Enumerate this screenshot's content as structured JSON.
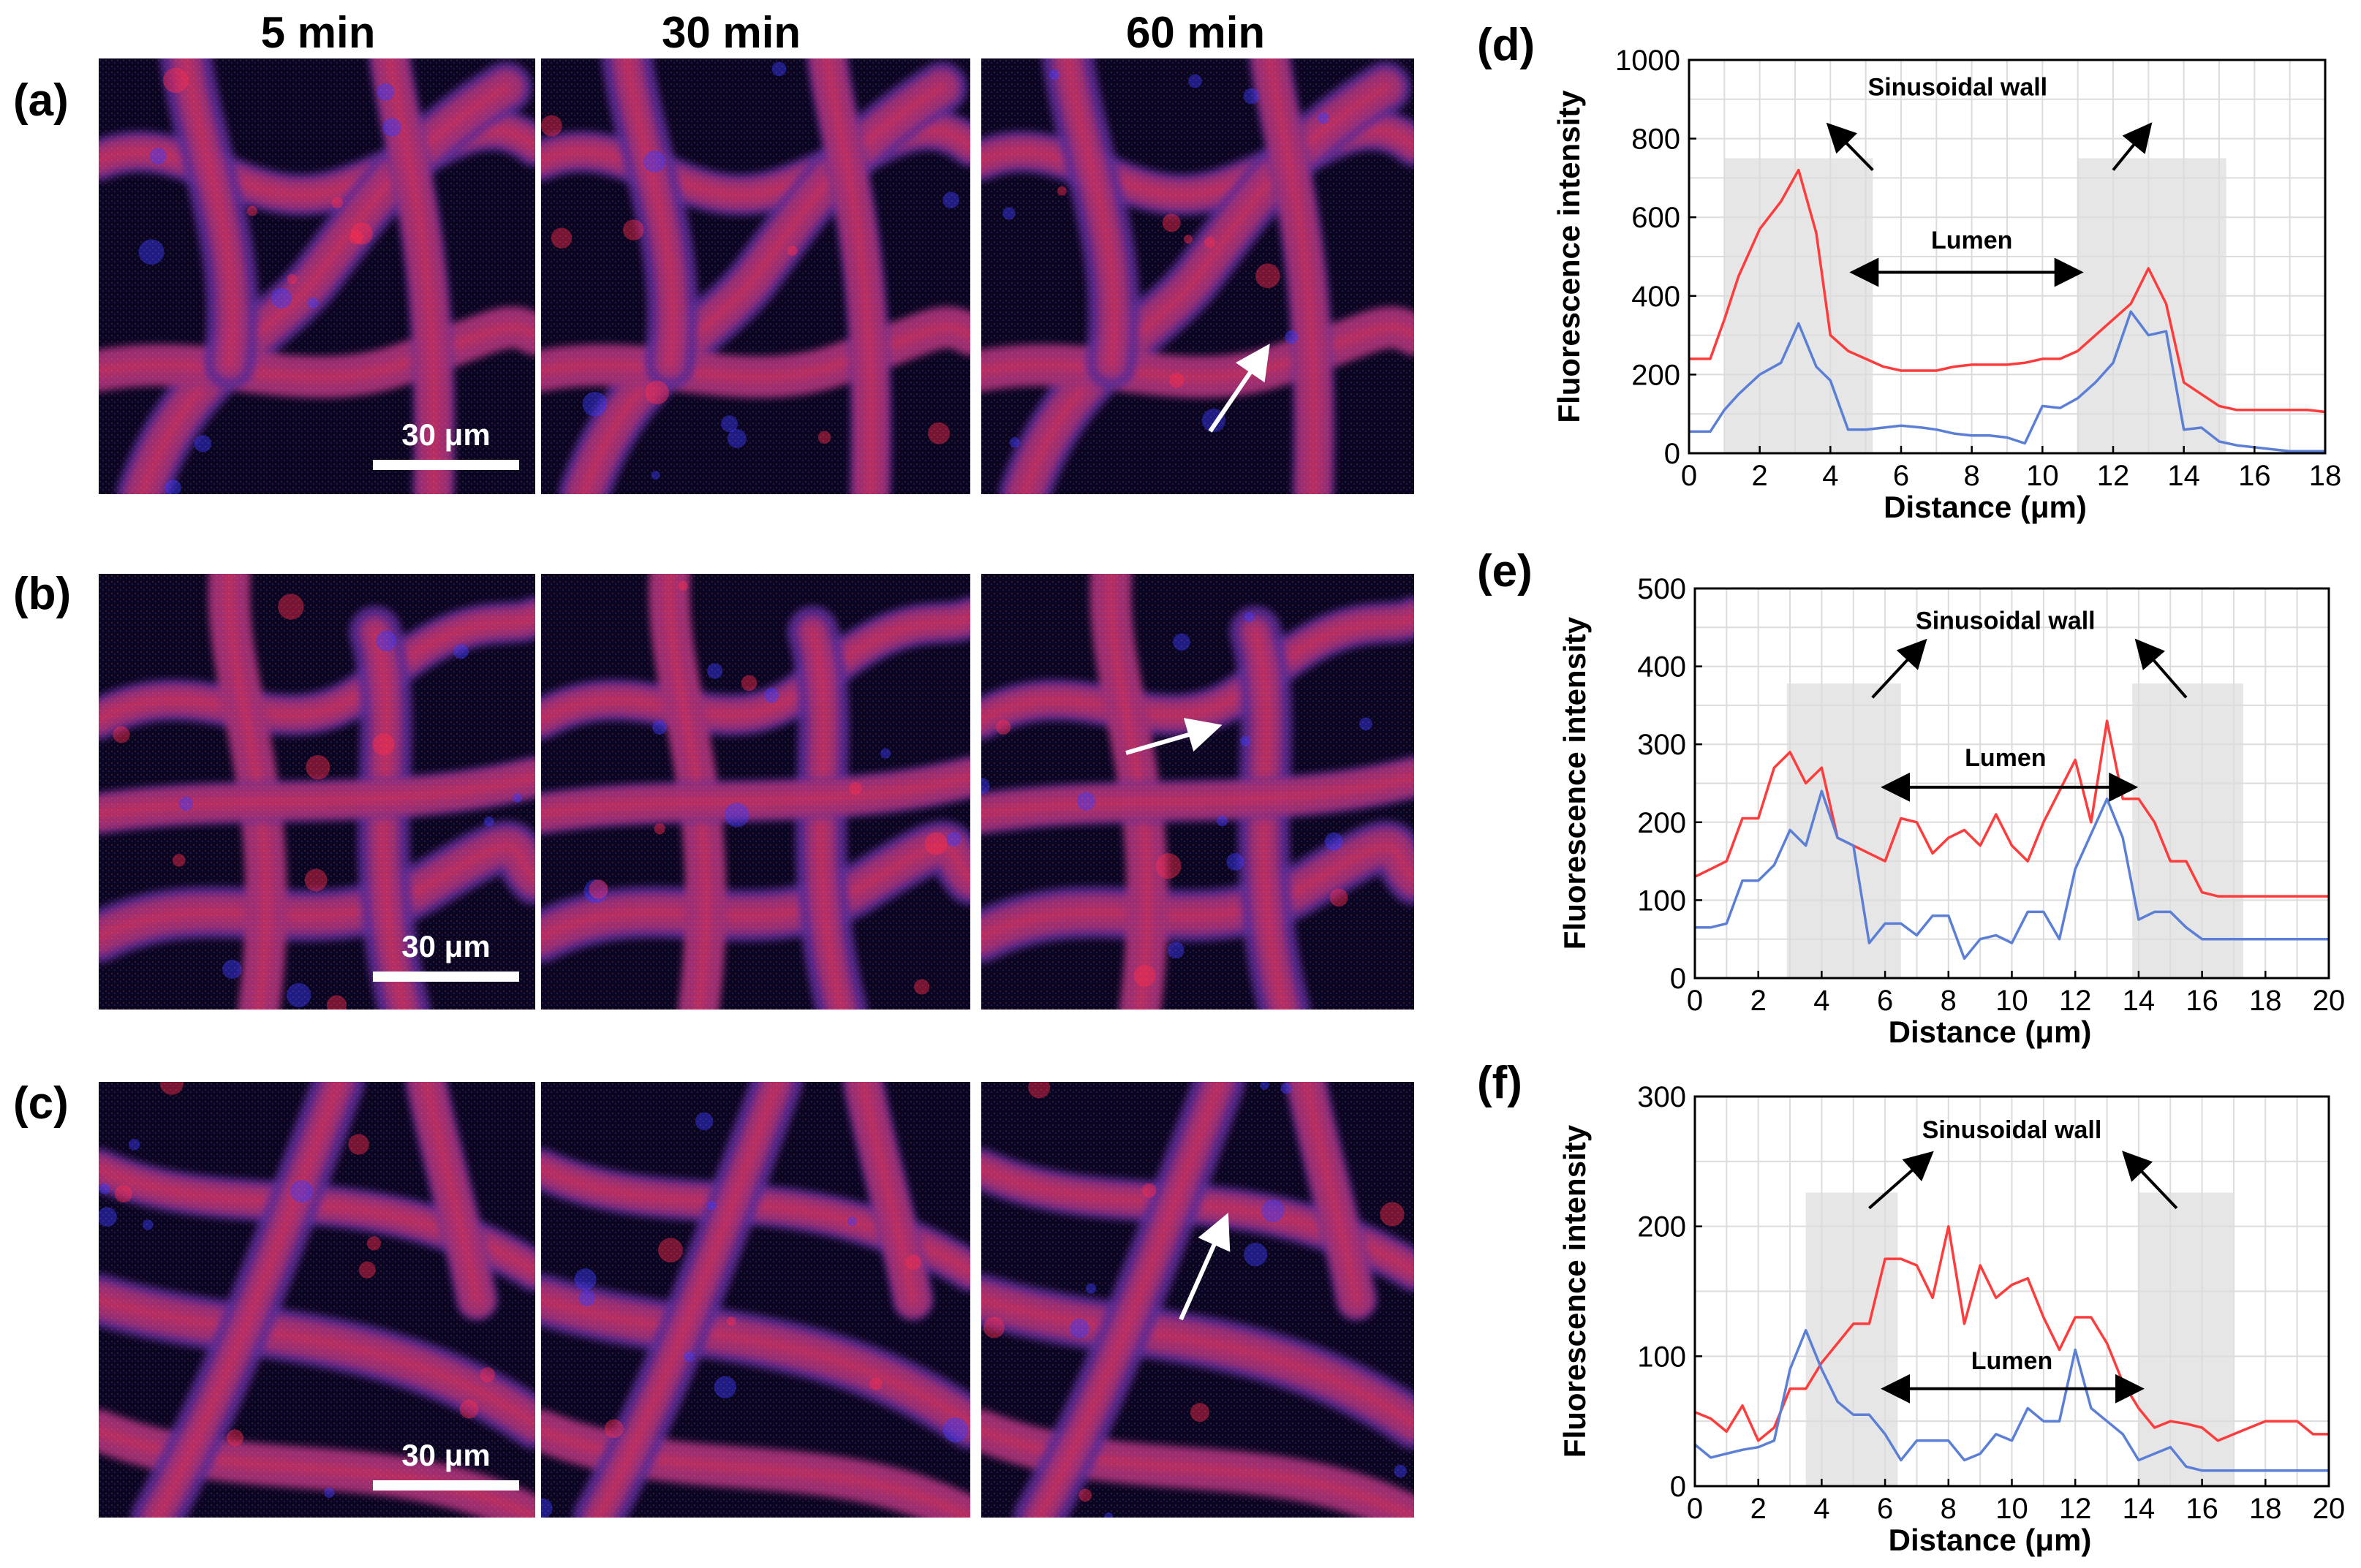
{
  "figure": {
    "column_titles": [
      "5 min",
      "30 min",
      "60 min"
    ],
    "row_labels": [
      "(a)",
      "(b)",
      "(c)"
    ],
    "scale_bar_text": "30 μm",
    "colors": {
      "red_channel": "#ff3b3b",
      "blue_channel": "#5b7fd6",
      "shade": "#e6e6e6",
      "grid": "#dcdcdc"
    }
  },
  "chart_data": [
    {
      "label": "(d)",
      "type": "line",
      "xlabel": "Distance (μm)",
      "ylabel": "Fluorescence intensity",
      "xlim": [
        0,
        18
      ],
      "ylim": [
        0,
        1000
      ],
      "xticks": [
        0,
        2,
        4,
        6,
        8,
        10,
        12,
        14,
        16,
        18
      ],
      "yticks": [
        0,
        200,
        400,
        600,
        800,
        1000
      ],
      "shaded_regions": [
        [
          1,
          5.2
        ],
        [
          11,
          15.2
        ]
      ],
      "shade_top": 750,
      "annotations": {
        "wall": "Sinusoidal wall",
        "lumen": "Lumen"
      },
      "wall_text_pos": [
        7.6,
        910
      ],
      "wall_arrows": [
        [
          [
            5.2,
            720
          ],
          [
            4,
            830
          ]
        ],
        [
          [
            12,
            720
          ],
          [
            13,
            830
          ]
        ]
      ],
      "lumen_text_pos": [
        8,
        520
      ],
      "lumen_arrow": [
        5.2,
        11,
        460
      ],
      "series": [
        {
          "name": "red",
          "color": "#ff3b3b",
          "x": [
            0,
            0.6,
            1,
            1.4,
            2,
            2.6,
            3.1,
            3.6,
            4,
            4.5,
            5,
            5.5,
            6,
            6.6,
            7,
            7.5,
            8,
            8.5,
            9,
            9.5,
            10,
            10.5,
            11,
            11.5,
            12,
            12.5,
            13,
            13.5,
            14,
            14.5,
            15,
            15.5,
            16,
            16.5,
            17,
            17.5,
            18
          ],
          "values": [
            240,
            240,
            340,
            450,
            570,
            640,
            720,
            560,
            300,
            260,
            240,
            220,
            210,
            210,
            210,
            220,
            225,
            225,
            225,
            230,
            240,
            240,
            260,
            300,
            340,
            380,
            470,
            380,
            180,
            150,
            120,
            110,
            110,
            110,
            110,
            110,
            105
          ]
        },
        {
          "name": "blue",
          "color": "#5b7fd6",
          "x": [
            0,
            0.6,
            1,
            1.4,
            2,
            2.6,
            3.1,
            3.6,
            4,
            4.5,
            5,
            5.5,
            6,
            6.6,
            7,
            7.5,
            8,
            8.5,
            9,
            9.5,
            10,
            10.5,
            11,
            11.5,
            12,
            12.5,
            13,
            13.5,
            14,
            14.5,
            15,
            15.5,
            16,
            16.5,
            17,
            17.5,
            18
          ],
          "values": [
            55,
            55,
            110,
            150,
            200,
            230,
            330,
            220,
            185,
            60,
            60,
            65,
            70,
            65,
            60,
            50,
            45,
            45,
            40,
            25,
            120,
            115,
            140,
            180,
            230,
            360,
            300,
            310,
            60,
            65,
            30,
            20,
            15,
            10,
            5,
            5,
            5
          ]
        }
      ]
    },
    {
      "label": "(e)",
      "type": "line",
      "xlabel": "Distance (μm)",
      "ylabel": "Fluorescence intensity",
      "xlim": [
        0,
        20
      ],
      "ylim": [
        0,
        500
      ],
      "xticks": [
        0,
        2,
        4,
        6,
        8,
        10,
        12,
        14,
        16,
        18,
        20
      ],
      "yticks": [
        0,
        100,
        200,
        300,
        400,
        500
      ],
      "shaded_regions": [
        [
          2.9,
          6.5
        ],
        [
          13.8,
          17.3
        ]
      ],
      "shade_top": 378,
      "annotations": {
        "wall": "Sinusoidal wall",
        "lumen": "Lumen"
      },
      "wall_text_pos": [
        9.8,
        448
      ],
      "wall_arrows": [
        [
          [
            5.6,
            360
          ],
          [
            7.2,
            430
          ]
        ],
        [
          [
            15.5,
            360
          ],
          [
            14,
            430
          ]
        ]
      ],
      "lumen_text_pos": [
        9.8,
        272
      ],
      "lumen_arrow": [
        6.6,
        13.8,
        245
      ],
      "series": [
        {
          "name": "red",
          "color": "#ff3b3b",
          "x": [
            0,
            0.5,
            1,
            1.5,
            2,
            2.5,
            3,
            3.5,
            4,
            4.5,
            5,
            5.5,
            6,
            6.5,
            7,
            7.5,
            8,
            8.5,
            9,
            9.5,
            10,
            10.5,
            11,
            11.5,
            12,
            12.5,
            13,
            13.5,
            14,
            14.5,
            15,
            15.5,
            16,
            16.5,
            17,
            17.5,
            18,
            18.5,
            19,
            19.5,
            20
          ],
          "values": [
            130,
            140,
            150,
            205,
            205,
            270,
            290,
            250,
            270,
            180,
            170,
            160,
            150,
            205,
            200,
            160,
            180,
            190,
            170,
            210,
            170,
            150,
            200,
            240,
            280,
            200,
            330,
            230,
            230,
            200,
            150,
            150,
            110,
            105,
            105,
            105,
            105,
            105,
            105,
            105,
            105
          ]
        },
        {
          "name": "blue",
          "color": "#5b7fd6",
          "x": [
            0,
            0.5,
            1,
            1.5,
            2,
            2.5,
            3,
            3.5,
            4,
            4.5,
            5,
            5.5,
            6,
            6.5,
            7,
            7.5,
            8,
            8.5,
            9,
            9.5,
            10,
            10.5,
            11,
            11.5,
            12,
            12.5,
            13,
            13.5,
            14,
            14.5,
            15,
            15.5,
            16,
            16.5,
            17,
            17.5,
            18,
            18.5,
            19,
            19.5,
            20
          ],
          "values": [
            65,
            65,
            70,
            125,
            125,
            145,
            190,
            170,
            240,
            180,
            170,
            45,
            70,
            70,
            55,
            80,
            80,
            25,
            50,
            55,
            45,
            85,
            85,
            50,
            140,
            185,
            230,
            180,
            75,
            85,
            85,
            65,
            50,
            50,
            50,
            50,
            50,
            50,
            50,
            50,
            50
          ]
        }
      ]
    },
    {
      "label": "(f)",
      "type": "line",
      "xlabel": "Distance (μm)",
      "ylabel": "Fluorescence intensity",
      "xlim": [
        0,
        20
      ],
      "ylim": [
        0,
        300
      ],
      "xticks": [
        0,
        2,
        4,
        6,
        8,
        10,
        12,
        14,
        16,
        18,
        20
      ],
      "yticks": [
        0,
        100,
        200,
        300
      ],
      "shaded_regions": [
        [
          3.5,
          6.4
        ],
        [
          14,
          17
        ]
      ],
      "shade_top": 226,
      "annotations": {
        "wall": "Sinusoidal wall",
        "lumen": "Lumen"
      },
      "wall_text_pos": [
        10,
        268
      ],
      "wall_arrows": [
        [
          [
            5.5,
            214
          ],
          [
            7.4,
            255
          ]
        ],
        [
          [
            15.2,
            214
          ],
          [
            13.6,
            255
          ]
        ]
      ],
      "lumen_text_pos": [
        10,
        90
      ],
      "lumen_arrow": [
        6.6,
        14,
        75
      ],
      "series": [
        {
          "name": "red",
          "color": "#ff3b3b",
          "x": [
            0,
            0.5,
            1,
            1.5,
            2,
            2.5,
            3,
            3.5,
            4,
            4.5,
            5,
            5.5,
            6,
            6.5,
            7,
            7.5,
            8,
            8.5,
            9,
            9.5,
            10,
            10.5,
            11,
            11.5,
            12,
            12.5,
            13,
            13.5,
            14,
            14.5,
            15,
            15.5,
            16,
            16.5,
            17,
            17.5,
            18,
            18.5,
            19,
            19.5,
            20
          ],
          "values": [
            57,
            52,
            42,
            62,
            35,
            45,
            75,
            75,
            95,
            110,
            125,
            125,
            175,
            175,
            170,
            145,
            200,
            125,
            170,
            145,
            155,
            160,
            130,
            105,
            130,
            130,
            110,
            80,
            60,
            45,
            50,
            48,
            45,
            35,
            40,
            45,
            50,
            50,
            50,
            40,
            40
          ]
        },
        {
          "name": "blue",
          "color": "#5b7fd6",
          "x": [
            0,
            0.5,
            1,
            1.5,
            2,
            2.5,
            3,
            3.5,
            4,
            4.5,
            5,
            5.5,
            6,
            6.5,
            7,
            7.5,
            8,
            8.5,
            9,
            9.5,
            10,
            10.5,
            11,
            11.5,
            12,
            12.5,
            13,
            13.5,
            14,
            14.5,
            15,
            15.5,
            16,
            16.5,
            17,
            17.5,
            18,
            18.5,
            19,
            19.5,
            20
          ],
          "values": [
            32,
            22,
            25,
            28,
            30,
            35,
            90,
            120,
            90,
            65,
            55,
            55,
            40,
            20,
            35,
            35,
            35,
            20,
            25,
            40,
            35,
            60,
            50,
            50,
            105,
            60,
            50,
            40,
            20,
            25,
            30,
            15,
            12,
            12,
            12,
            12,
            12,
            12,
            12,
            12,
            12
          ]
        }
      ]
    }
  ]
}
